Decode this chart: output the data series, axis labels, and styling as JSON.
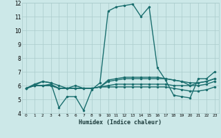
{
  "xlabel": "Humidex (Indice chaleur)",
  "xlim": [
    -0.5,
    23.5
  ],
  "ylim": [
    4,
    12
  ],
  "xticks": [
    0,
    1,
    2,
    3,
    4,
    5,
    6,
    7,
    8,
    9,
    10,
    11,
    12,
    13,
    14,
    15,
    16,
    17,
    18,
    19,
    20,
    21,
    22,
    23
  ],
  "yticks": [
    4,
    5,
    6,
    7,
    8,
    9,
    10,
    11,
    12
  ],
  "bg_color": "#cce8e8",
  "grid_color": "#aacccc",
  "line_color": "#1a6e6e",
  "lines": [
    [
      5.8,
      6.1,
      6.3,
      6.2,
      4.4,
      5.2,
      5.2,
      4.2,
      5.7,
      6.2,
      11.4,
      11.7,
      11.8,
      11.9,
      11.0,
      11.7,
      7.3,
      6.4,
      5.3,
      5.2,
      5.1,
      6.5,
      6.5,
      7.0
    ],
    [
      5.8,
      6.0,
      6.3,
      6.2,
      6.0,
      5.8,
      6.0,
      5.8,
      5.8,
      5.9,
      6.3,
      6.4,
      6.5,
      6.5,
      6.5,
      6.5,
      6.5,
      6.5,
      6.4,
      6.3,
      6.0,
      6.2,
      6.3,
      6.5
    ],
    [
      5.8,
      6.0,
      6.0,
      6.0,
      5.8,
      5.8,
      5.8,
      5.8,
      5.8,
      5.9,
      6.0,
      6.1,
      6.1,
      6.1,
      6.1,
      6.1,
      6.1,
      6.1,
      6.0,
      6.0,
      6.0,
      6.0,
      6.1,
      6.3
    ],
    [
      5.8,
      6.0,
      6.0,
      6.0,
      5.8,
      5.8,
      5.8,
      5.8,
      5.8,
      5.9,
      5.9,
      5.9,
      5.9,
      5.9,
      5.9,
      5.9,
      5.9,
      5.9,
      5.8,
      5.7,
      5.6,
      5.6,
      5.7,
      5.9
    ],
    [
      5.8,
      6.0,
      6.0,
      6.1,
      5.8,
      5.8,
      5.8,
      5.8,
      5.8,
      5.9,
      6.4,
      6.5,
      6.6,
      6.6,
      6.6,
      6.6,
      6.6,
      6.5,
      6.4,
      6.3,
      6.2,
      6.2,
      6.3,
      6.5
    ]
  ],
  "marker": ".",
  "marker_size": 3,
  "line_width": 1.0
}
